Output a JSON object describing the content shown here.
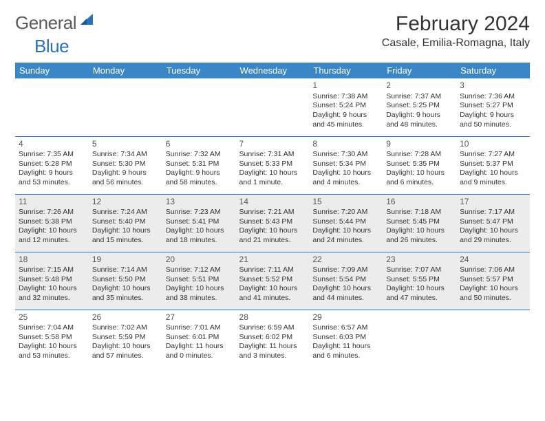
{
  "logo": {
    "general": "General",
    "blue": "Blue",
    "shape_color": "#2a71b8"
  },
  "title": "February 2024",
  "location": "Casale, Emilia-Romagna, Italy",
  "colors": {
    "header_bg": "#3b86c7",
    "header_fg": "#ffffff",
    "rule": "#2a71b8",
    "shaded": "#ececec",
    "text": "#333333"
  },
  "weekdays": [
    "Sunday",
    "Monday",
    "Tuesday",
    "Wednesday",
    "Thursday",
    "Friday",
    "Saturday"
  ],
  "weeks": [
    [
      null,
      null,
      null,
      null,
      {
        "n": "1",
        "sr": "Sunrise: 7:38 AM",
        "ss": "Sunset: 5:24 PM",
        "dl1": "Daylight: 9 hours",
        "dl2": "and 45 minutes.",
        "sh": false
      },
      {
        "n": "2",
        "sr": "Sunrise: 7:37 AM",
        "ss": "Sunset: 5:25 PM",
        "dl1": "Daylight: 9 hours",
        "dl2": "and 48 minutes.",
        "sh": false
      },
      {
        "n": "3",
        "sr": "Sunrise: 7:36 AM",
        "ss": "Sunset: 5:27 PM",
        "dl1": "Daylight: 9 hours",
        "dl2": "and 50 minutes.",
        "sh": false
      }
    ],
    [
      {
        "n": "4",
        "sr": "Sunrise: 7:35 AM",
        "ss": "Sunset: 5:28 PM",
        "dl1": "Daylight: 9 hours",
        "dl2": "and 53 minutes.",
        "sh": false
      },
      {
        "n": "5",
        "sr": "Sunrise: 7:34 AM",
        "ss": "Sunset: 5:30 PM",
        "dl1": "Daylight: 9 hours",
        "dl2": "and 56 minutes.",
        "sh": false
      },
      {
        "n": "6",
        "sr": "Sunrise: 7:32 AM",
        "ss": "Sunset: 5:31 PM",
        "dl1": "Daylight: 9 hours",
        "dl2": "and 58 minutes.",
        "sh": false
      },
      {
        "n": "7",
        "sr": "Sunrise: 7:31 AM",
        "ss": "Sunset: 5:33 PM",
        "dl1": "Daylight: 10 hours",
        "dl2": "and 1 minute.",
        "sh": false
      },
      {
        "n": "8",
        "sr": "Sunrise: 7:30 AM",
        "ss": "Sunset: 5:34 PM",
        "dl1": "Daylight: 10 hours",
        "dl2": "and 4 minutes.",
        "sh": false
      },
      {
        "n": "9",
        "sr": "Sunrise: 7:28 AM",
        "ss": "Sunset: 5:35 PM",
        "dl1": "Daylight: 10 hours",
        "dl2": "and 6 minutes.",
        "sh": false
      },
      {
        "n": "10",
        "sr": "Sunrise: 7:27 AM",
        "ss": "Sunset: 5:37 PM",
        "dl1": "Daylight: 10 hours",
        "dl2": "and 9 minutes.",
        "sh": false
      }
    ],
    [
      {
        "n": "11",
        "sr": "Sunrise: 7:26 AM",
        "ss": "Sunset: 5:38 PM",
        "dl1": "Daylight: 10 hours",
        "dl2": "and 12 minutes.",
        "sh": true
      },
      {
        "n": "12",
        "sr": "Sunrise: 7:24 AM",
        "ss": "Sunset: 5:40 PM",
        "dl1": "Daylight: 10 hours",
        "dl2": "and 15 minutes.",
        "sh": true
      },
      {
        "n": "13",
        "sr": "Sunrise: 7:23 AM",
        "ss": "Sunset: 5:41 PM",
        "dl1": "Daylight: 10 hours",
        "dl2": "and 18 minutes.",
        "sh": true
      },
      {
        "n": "14",
        "sr": "Sunrise: 7:21 AM",
        "ss": "Sunset: 5:43 PM",
        "dl1": "Daylight: 10 hours",
        "dl2": "and 21 minutes.",
        "sh": true
      },
      {
        "n": "15",
        "sr": "Sunrise: 7:20 AM",
        "ss": "Sunset: 5:44 PM",
        "dl1": "Daylight: 10 hours",
        "dl2": "and 24 minutes.",
        "sh": true
      },
      {
        "n": "16",
        "sr": "Sunrise: 7:18 AM",
        "ss": "Sunset: 5:45 PM",
        "dl1": "Daylight: 10 hours",
        "dl2": "and 26 minutes.",
        "sh": true
      },
      {
        "n": "17",
        "sr": "Sunrise: 7:17 AM",
        "ss": "Sunset: 5:47 PM",
        "dl1": "Daylight: 10 hours",
        "dl2": "and 29 minutes.",
        "sh": true
      }
    ],
    [
      {
        "n": "18",
        "sr": "Sunrise: 7:15 AM",
        "ss": "Sunset: 5:48 PM",
        "dl1": "Daylight: 10 hours",
        "dl2": "and 32 minutes.",
        "sh": true
      },
      {
        "n": "19",
        "sr": "Sunrise: 7:14 AM",
        "ss": "Sunset: 5:50 PM",
        "dl1": "Daylight: 10 hours",
        "dl2": "and 35 minutes.",
        "sh": true
      },
      {
        "n": "20",
        "sr": "Sunrise: 7:12 AM",
        "ss": "Sunset: 5:51 PM",
        "dl1": "Daylight: 10 hours",
        "dl2": "and 38 minutes.",
        "sh": true
      },
      {
        "n": "21",
        "sr": "Sunrise: 7:11 AM",
        "ss": "Sunset: 5:52 PM",
        "dl1": "Daylight: 10 hours",
        "dl2": "and 41 minutes.",
        "sh": true
      },
      {
        "n": "22",
        "sr": "Sunrise: 7:09 AM",
        "ss": "Sunset: 5:54 PM",
        "dl1": "Daylight: 10 hours",
        "dl2": "and 44 minutes.",
        "sh": true
      },
      {
        "n": "23",
        "sr": "Sunrise: 7:07 AM",
        "ss": "Sunset: 5:55 PM",
        "dl1": "Daylight: 10 hours",
        "dl2": "and 47 minutes.",
        "sh": true
      },
      {
        "n": "24",
        "sr": "Sunrise: 7:06 AM",
        "ss": "Sunset: 5:57 PM",
        "dl1": "Daylight: 10 hours",
        "dl2": "and 50 minutes.",
        "sh": true
      }
    ],
    [
      {
        "n": "25",
        "sr": "Sunrise: 7:04 AM",
        "ss": "Sunset: 5:58 PM",
        "dl1": "Daylight: 10 hours",
        "dl2": "and 53 minutes.",
        "sh": false
      },
      {
        "n": "26",
        "sr": "Sunrise: 7:02 AM",
        "ss": "Sunset: 5:59 PM",
        "dl1": "Daylight: 10 hours",
        "dl2": "and 57 minutes.",
        "sh": false
      },
      {
        "n": "27",
        "sr": "Sunrise: 7:01 AM",
        "ss": "Sunset: 6:01 PM",
        "dl1": "Daylight: 11 hours",
        "dl2": "and 0 minutes.",
        "sh": false
      },
      {
        "n": "28",
        "sr": "Sunrise: 6:59 AM",
        "ss": "Sunset: 6:02 PM",
        "dl1": "Daylight: 11 hours",
        "dl2": "and 3 minutes.",
        "sh": false
      },
      {
        "n": "29",
        "sr": "Sunrise: 6:57 AM",
        "ss": "Sunset: 6:03 PM",
        "dl1": "Daylight: 11 hours",
        "dl2": "and 6 minutes.",
        "sh": false
      },
      null,
      null
    ]
  ]
}
